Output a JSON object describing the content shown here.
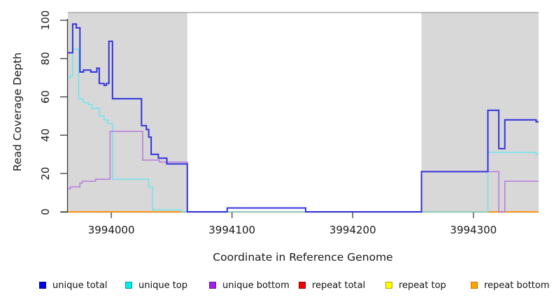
{
  "chart_data": {
    "type": "line",
    "subtype": "step-coverage-plot",
    "title": "",
    "xlabel": "Coordinate in Reference Genome",
    "ylabel": "Read Coverage Depth",
    "x_range": [
      3993964,
      3994354
    ],
    "y_range": [
      0,
      104
    ],
    "x_ticks": [
      3994000,
      3994100,
      3994200,
      3994300
    ],
    "y_ticks": [
      0,
      20,
      40,
      60,
      80,
      100
    ],
    "grid": "off",
    "legend_position": "bottom",
    "shaded_regions": [
      {
        "name": "left-repeat-masked-region",
        "from": 3993964,
        "to": 3994063,
        "color": "#D8D8D8"
      },
      {
        "name": "right-repeat-masked-region",
        "from": 3994257,
        "to": 3994354,
        "color": "#D8D8D8"
      }
    ],
    "frame_top_line_color": "#9C9C9C",
    "axis_color": "#3A3A3A",
    "series": [
      {
        "name": "repeat total",
        "line_color": "#DD2222",
        "width": 1.4,
        "steps": [
          [
            3993964,
            0
          ],
          [
            3994354,
            0
          ]
        ]
      },
      {
        "name": "repeat top",
        "line_color": "#F0F000",
        "width": 1.4,
        "steps": [
          [
            3993964,
            0
          ],
          [
            3994354,
            0
          ]
        ]
      },
      {
        "name": "repeat bottom",
        "line_color": "#FF9414",
        "width": 2,
        "steps": [
          [
            3993964,
            0
          ],
          [
            3994354,
            0
          ]
        ]
      },
      {
        "name": "unique top",
        "line_color": "#6FE3EF",
        "width": 1.5,
        "steps": [
          [
            3993964,
            70
          ],
          [
            3993966,
            71
          ],
          [
            3993968,
            85
          ],
          [
            3993973,
            59
          ],
          [
            3993977,
            57
          ],
          [
            3993981,
            56
          ],
          [
            3993984,
            54
          ],
          [
            3993990,
            50
          ],
          [
            3993994,
            48
          ],
          [
            3993997,
            46
          ],
          [
            3994001,
            17
          ],
          [
            3994031,
            13
          ],
          [
            3994034,
            1
          ],
          [
            3994058,
            0
          ],
          [
            3994312,
            31
          ],
          [
            3994352,
            30
          ],
          [
            3994354,
            30
          ]
        ]
      },
      {
        "name": "unique bottom",
        "line_color": "#B878DE",
        "width": 1.5,
        "steps": [
          [
            3993964,
            12
          ],
          [
            3993966,
            13
          ],
          [
            3993974,
            15
          ],
          [
            3993976,
            16
          ],
          [
            3993987,
            17
          ],
          [
            3993999,
            42
          ],
          [
            3994026,
            27
          ],
          [
            3994040,
            26
          ],
          [
            3994063,
            0
          ],
          [
            3994096,
            2
          ],
          [
            3994161,
            0
          ],
          [
            3994257,
            21
          ],
          [
            3994321,
            0
          ],
          [
            3994326,
            16
          ],
          [
            3994354,
            16
          ]
        ]
      },
      {
        "name": "unique total",
        "line_color": "#3232DC",
        "width": 2,
        "steps": [
          [
            3993964,
            83
          ],
          [
            3993968,
            98
          ],
          [
            3993971,
            96
          ],
          [
            3993974,
            73
          ],
          [
            3993977,
            74
          ],
          [
            3993983,
            73
          ],
          [
            3993988,
            75
          ],
          [
            3993990,
            67
          ],
          [
            3993994,
            66
          ],
          [
            3993996,
            67
          ],
          [
            3993998,
            89
          ],
          [
            3994001,
            59
          ],
          [
            3994025,
            45
          ],
          [
            3994029,
            43
          ],
          [
            3994031,
            39
          ],
          [
            3994033,
            30
          ],
          [
            3994039,
            28
          ],
          [
            3994046,
            25
          ],
          [
            3994063,
            0
          ],
          [
            3994096,
            2
          ],
          [
            3994161,
            0
          ],
          [
            3994257,
            21
          ],
          [
            3994312,
            53
          ],
          [
            3994321,
            33
          ],
          [
            3994326,
            48
          ],
          [
            3994352,
            47
          ],
          [
            3994354,
            47
          ]
        ]
      }
    ]
  },
  "legend": {
    "items": [
      {
        "label": "unique total",
        "fill": "#0000EE",
        "border": "#000090"
      },
      {
        "label": "unique top",
        "fill": "#00EEEE",
        "border": "#009999"
      },
      {
        "label": "unique bottom",
        "fill": "#A020F0",
        "border": "#6A14A0"
      },
      {
        "label": "repeat total",
        "fill": "#EE0000",
        "border": "#990000"
      },
      {
        "label": "repeat top",
        "fill": "#FFFF00",
        "border": "#AAAA00"
      },
      {
        "label": "repeat bottom",
        "fill": "#FFA500",
        "border": "#CC7700"
      }
    ]
  }
}
